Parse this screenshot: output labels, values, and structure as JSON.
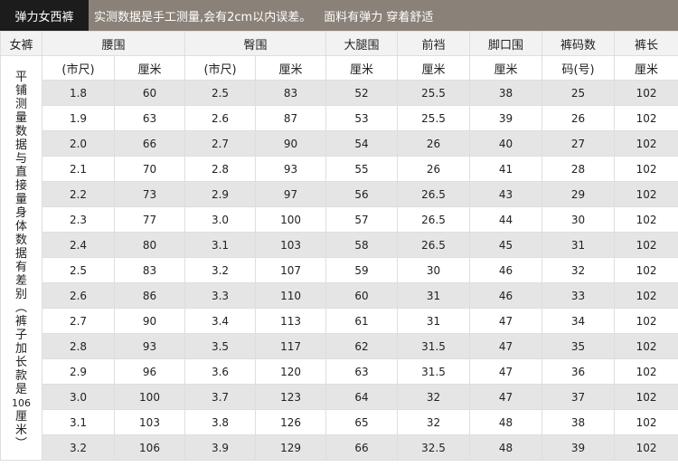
{
  "banner": {
    "title": "弹力女西裤",
    "notice": "实测数据是手工测量,会有2cm以内误差。",
    "feature": "面料有弹力  穿着舒适"
  },
  "table": {
    "corner_label": "女裤",
    "group_headers": [
      "腰围",
      "臀围",
      "大腿围",
      "前裆",
      "脚口围",
      "裤码数",
      "裤长"
    ],
    "unit_headers": [
      "(市尺)",
      "厘米",
      "(市尺)",
      "厘米",
      "厘米",
      "厘米",
      "厘米",
      "码(号)",
      "厘米"
    ],
    "side_note": "平铺测量数据与直接量身体数据有差别(裤子加长款是106厘米)",
    "side_note_lines": [
      "平",
      "铺",
      "测",
      "量",
      "数",
      "据",
      "与",
      "直",
      "接",
      "量",
      "身",
      "体",
      "数",
      "据",
      "有",
      "差",
      "别",
      "︵",
      "裤",
      "子",
      "加",
      "长",
      "款",
      "是",
      "106",
      "厘",
      "米",
      "︶"
    ],
    "rows": [
      [
        "1.8",
        "60",
        "2.5",
        "83",
        "52",
        "25.5",
        "38",
        "25",
        "102"
      ],
      [
        "1.9",
        "63",
        "2.6",
        "87",
        "53",
        "25.5",
        "39",
        "26",
        "102"
      ],
      [
        "2.0",
        "66",
        "2.7",
        "90",
        "54",
        "26",
        "40",
        "27",
        "102"
      ],
      [
        "2.1",
        "70",
        "2.8",
        "93",
        "55",
        "26",
        "41",
        "28",
        "102"
      ],
      [
        "2.2",
        "73",
        "2.9",
        "97",
        "56",
        "26.5",
        "43",
        "29",
        "102"
      ],
      [
        "2.3",
        "77",
        "3.0",
        "100",
        "57",
        "26.5",
        "44",
        "30",
        "102"
      ],
      [
        "2.4",
        "80",
        "3.1",
        "103",
        "58",
        "26.5",
        "45",
        "31",
        "102"
      ],
      [
        "2.5",
        "83",
        "3.2",
        "107",
        "59",
        "30",
        "46",
        "32",
        "102"
      ],
      [
        "2.6",
        "86",
        "3.3",
        "110",
        "60",
        "31",
        "46",
        "33",
        "102"
      ],
      [
        "2.7",
        "90",
        "3.4",
        "113",
        "61",
        "31",
        "47",
        "34",
        "102"
      ],
      [
        "2.8",
        "93",
        "3.5",
        "117",
        "62",
        "31.5",
        "47",
        "35",
        "102"
      ],
      [
        "2.9",
        "96",
        "3.6",
        "120",
        "63",
        "31.5",
        "47",
        "36",
        "102"
      ],
      [
        "3.0",
        "100",
        "3.7",
        "123",
        "64",
        "32",
        "47",
        "37",
        "102"
      ],
      [
        "3.1",
        "103",
        "3.8",
        "126",
        "65",
        "32",
        "48",
        "38",
        "102"
      ],
      [
        "3.2",
        "106",
        "3.9",
        "129",
        "66",
        "32.5",
        "48",
        "39",
        "102"
      ]
    ]
  },
  "colors": {
    "banner_left_bg": "#1c1c1c",
    "banner_right_bg": "#8a8178",
    "row_alt_bg": "#e5e5e5",
    "header_bg": "#f2f2f2"
  }
}
